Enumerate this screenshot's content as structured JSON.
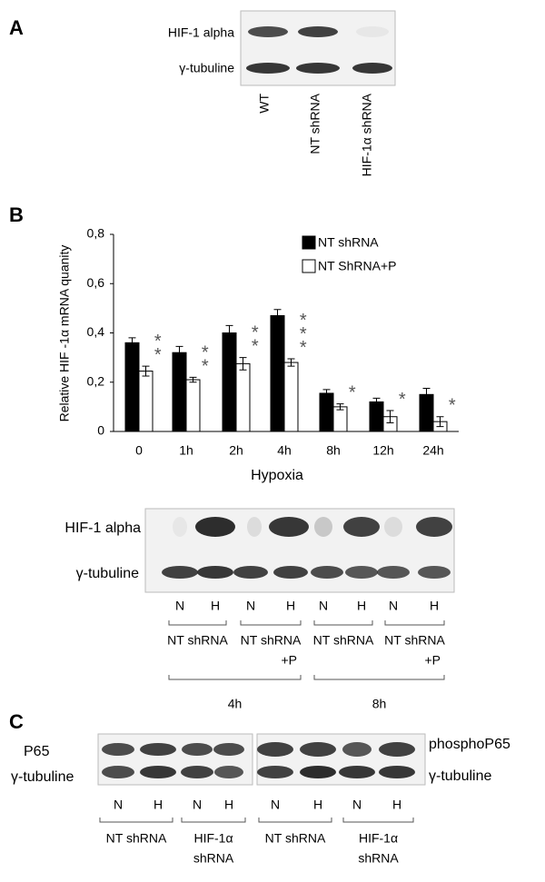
{
  "panel_a": {
    "label": "A",
    "rows": [
      "HIF-1 alpha",
      "γ-tubuline"
    ],
    "lanes": [
      "WT",
      "NT shRNA",
      "HIF-1α shRNA"
    ]
  },
  "chart_data": {
    "type": "bar",
    "panel_label": "B",
    "ylabel": "Relative HIF -1α mRNA quanity",
    "xlabel": "Hypoxia",
    "categories": [
      "0",
      "1h",
      "2h",
      "4h",
      "8h",
      "12h",
      "24h"
    ],
    "series": [
      {
        "name": "NT shRNA",
        "color": "#000000",
        "values": [
          0.36,
          0.32,
          0.4,
          0.47,
          0.155,
          0.12,
          0.15
        ],
        "errors": [
          0.02,
          0.025,
          0.03,
          0.025,
          0.015,
          0.015,
          0.025
        ]
      },
      {
        "name": "NT ShRNA+P",
        "color": "#ffffff",
        "values": [
          0.245,
          0.21,
          0.275,
          0.28,
          0.1,
          0.06,
          0.04
        ],
        "errors": [
          0.02,
          0.01,
          0.025,
          0.015,
          0.012,
          0.025,
          0.02
        ]
      }
    ],
    "significance": [
      "**",
      "**",
      "**",
      "***",
      "*",
      "*",
      "*"
    ],
    "ylim": [
      0,
      0.8
    ],
    "yticks": [
      0,
      {
        "value": 0.2,
        "label": "0,2"
      },
      {
        "value": 0.4,
        "label": "0,4"
      },
      {
        "value": 0.6,
        "label": "0,6"
      },
      {
        "value": 0.8,
        "label": "0,8"
      }
    ]
  },
  "blot_b": {
    "rows": [
      "HIF-1 alpha",
      "γ-tubuline"
    ],
    "lanes": [
      "N",
      "H",
      "N",
      "H",
      "N",
      "H",
      "N",
      "H"
    ],
    "groups": [
      [
        "NT shRNA"
      ],
      [
        "NT shRNA",
        "+P"
      ],
      [
        "NT shRNA"
      ],
      [
        "NT shRNA",
        "+P"
      ]
    ],
    "times": [
      "4h",
      "8h"
    ]
  },
  "panel_c": {
    "label": "C",
    "left_rows": [
      "P65",
      "γ-tubuline"
    ],
    "right_rows": [
      "phosphoP65",
      "γ-tubuline"
    ],
    "lanes": [
      "N",
      "H",
      "N",
      "H",
      "N",
      "H",
      "N",
      "H"
    ],
    "groups": [
      [
        "NT shRNA"
      ],
      [
        "HIF-1α",
        "shRNA"
      ],
      [
        "NT shRNA"
      ],
      [
        "HIF-1α",
        "shRNA"
      ]
    ]
  }
}
